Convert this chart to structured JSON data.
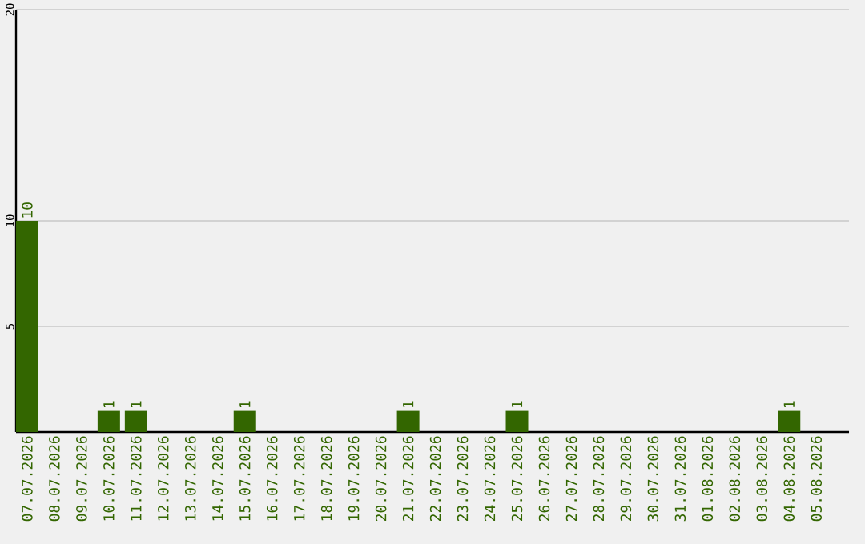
{
  "chart_data": {
    "type": "bar",
    "categories": [
      "07.07.2026",
      "08.07.2026",
      "09.07.2026",
      "10.07.2026",
      "11.07.2026",
      "12.07.2026",
      "13.07.2026",
      "14.07.2026",
      "15.07.2026",
      "16.07.2026",
      "17.07.2026",
      "18.07.2026",
      "19.07.2026",
      "20.07.2026",
      "21.07.2026",
      "22.07.2026",
      "23.07.2026",
      "24.07.2026",
      "25.07.2026",
      "26.07.2026",
      "27.07.2026",
      "28.07.2026",
      "29.07.2026",
      "30.07.2026",
      "31.07.2026",
      "01.08.2026",
      "02.08.2026",
      "03.08.2026",
      "04.08.2026",
      "05.08.2026"
    ],
    "values": [
      10,
      0,
      0,
      1,
      1,
      0,
      0,
      0,
      1,
      0,
      0,
      0,
      0,
      0,
      1,
      0,
      0,
      0,
      1,
      0,
      0,
      0,
      0,
      0,
      0,
      0,
      0,
      0,
      1,
      0
    ],
    "value_labels": [
      "10",
      null,
      null,
      "1",
      "1",
      null,
      null,
      null,
      "1",
      null,
      null,
      null,
      null,
      null,
      "1",
      null,
      null,
      null,
      "1",
      null,
      null,
      null,
      null,
      null,
      null,
      null,
      null,
      null,
      "1",
      null
    ],
    "color": "#336600",
    "ylim": [
      0,
      20
    ],
    "yticks": [
      5,
      10,
      20
    ],
    "grid": "y"
  }
}
